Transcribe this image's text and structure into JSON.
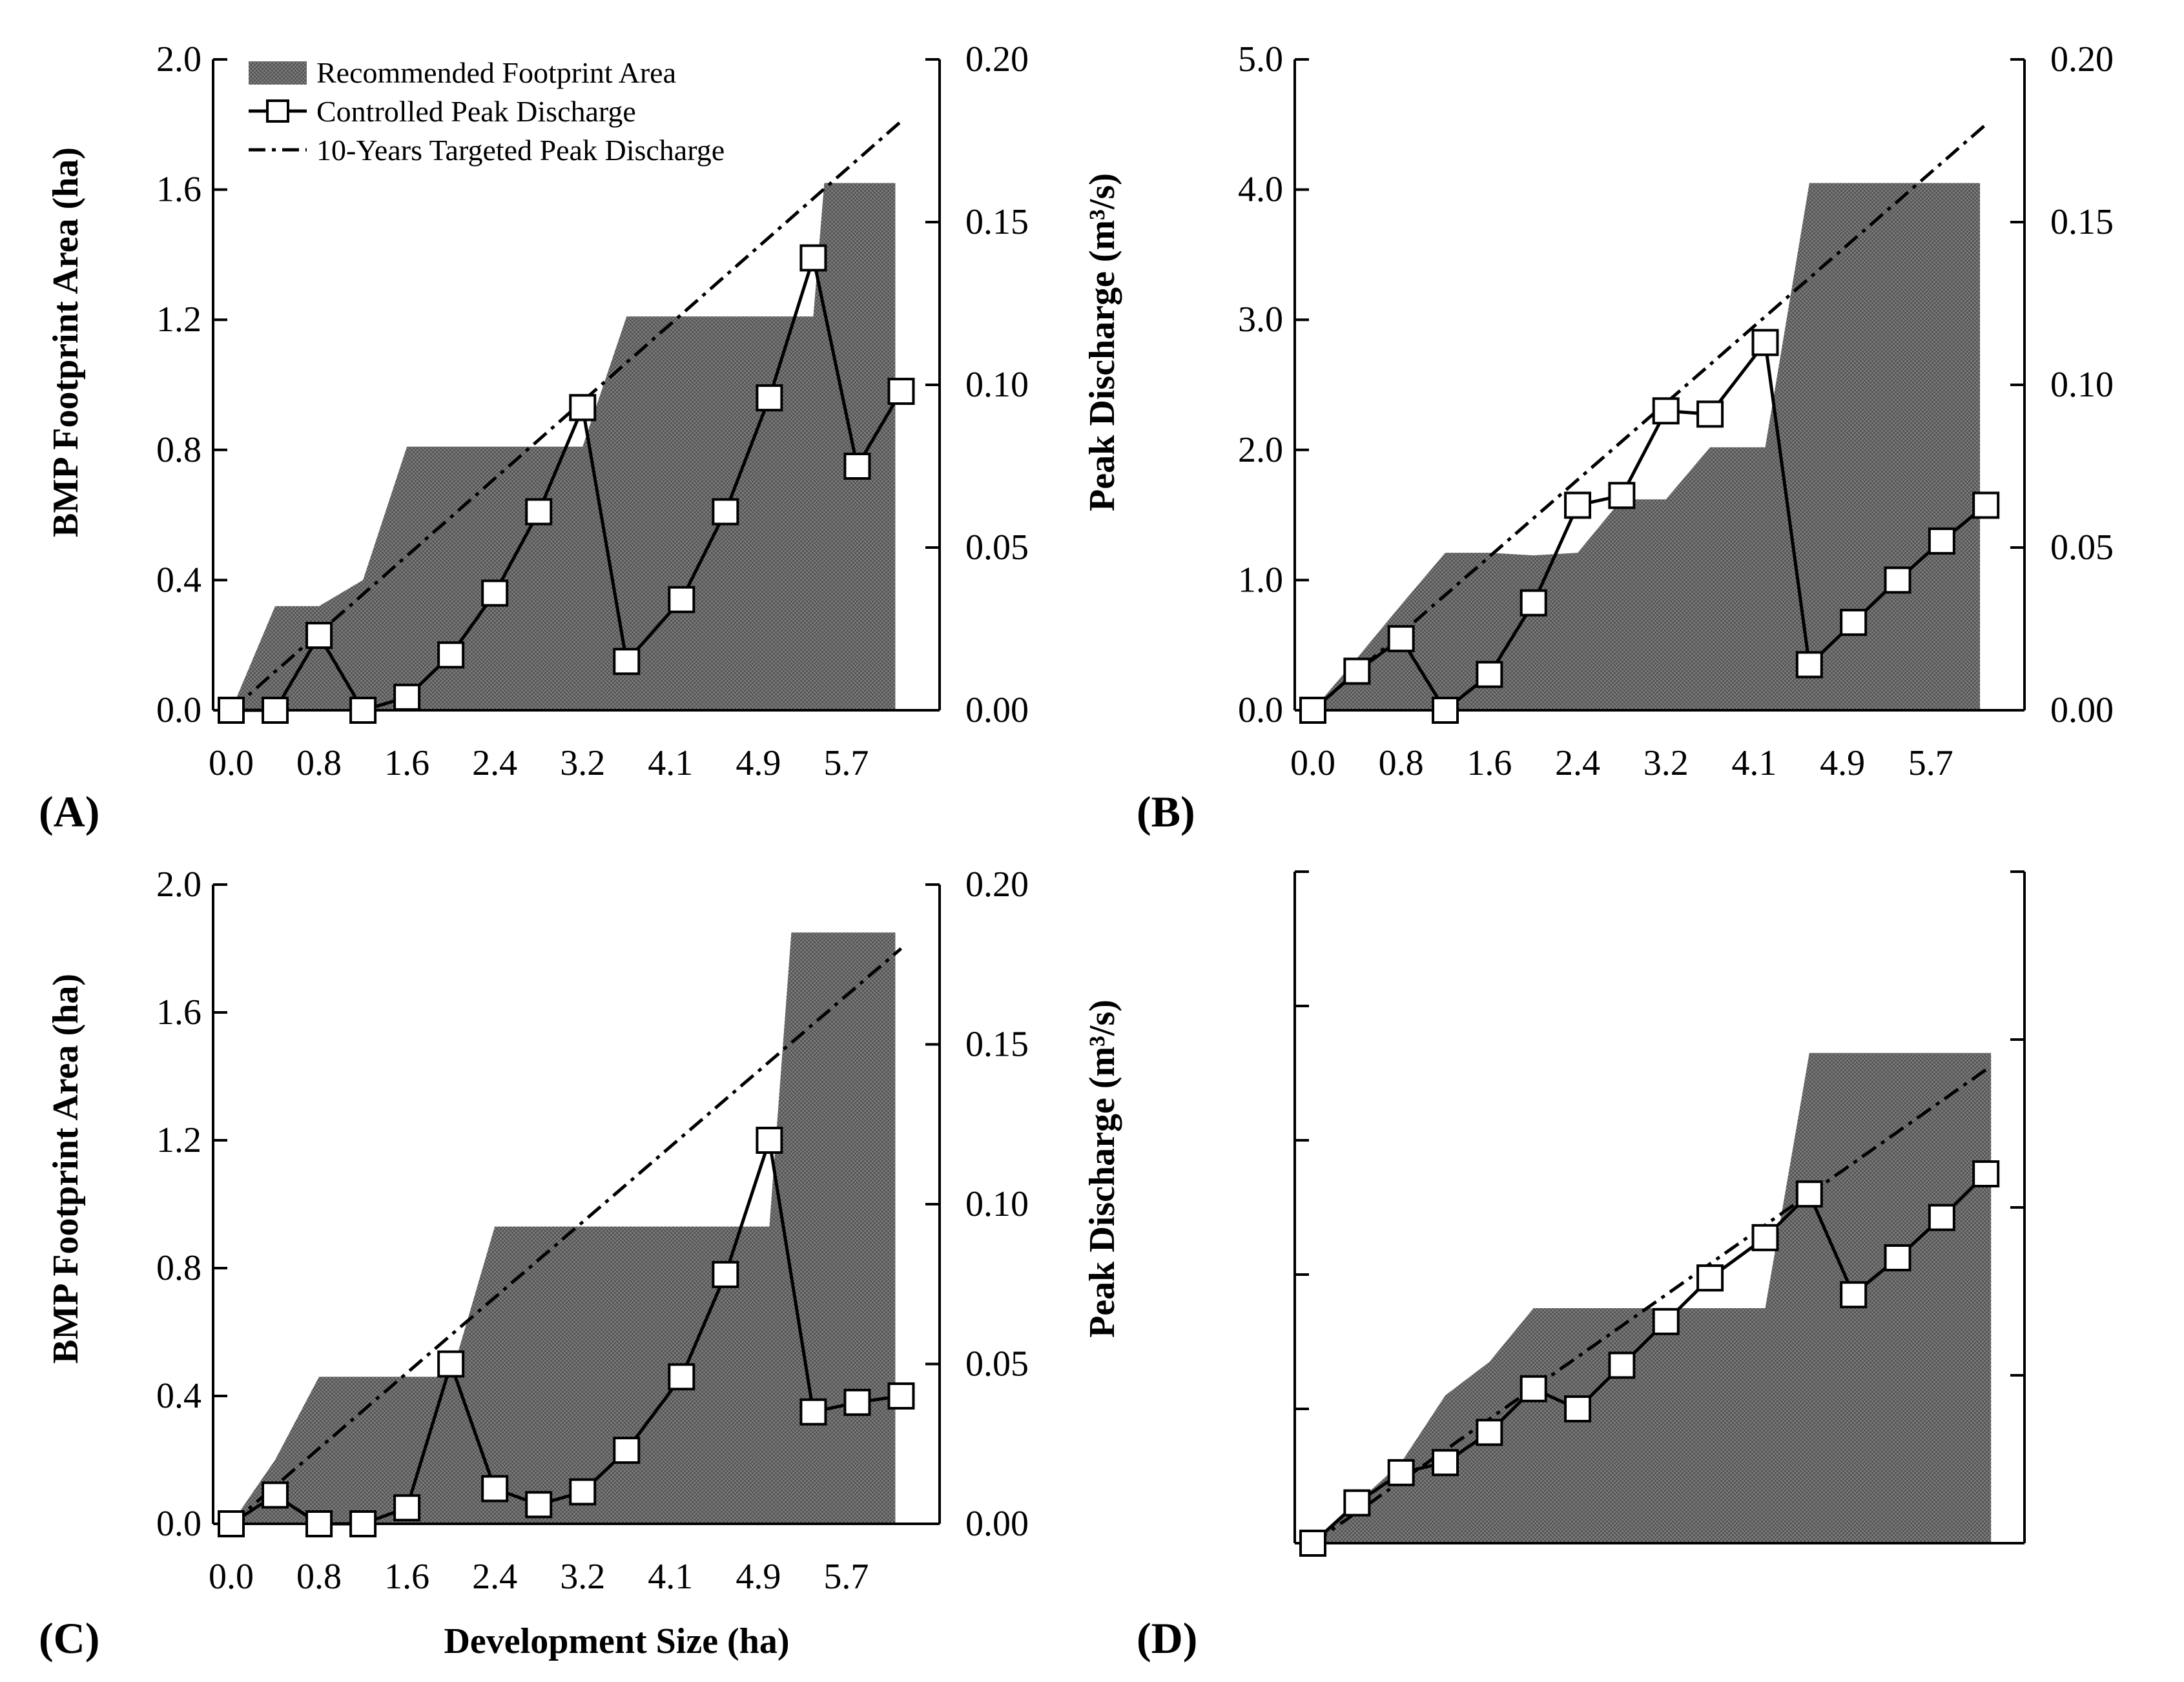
{
  "colors": {
    "area_fill": "#6f6f6f",
    "area_dots": "#4a4a4a",
    "line": "#000000",
    "marker_fill": "#ffffff"
  },
  "legend": {
    "area_label": "Recommended Footprint Area",
    "controlled_label": "Controlled Peak Discharge",
    "target_label": "10-Years Targeted Peak Discharge"
  },
  "axis_titles": {
    "left": "BMP  Footprint Area (ha)",
    "right": "Peak Discharge (m³/s)",
    "x": "Development Size (ha)"
  },
  "x_tick_labels": [
    "0.0",
    "0.8",
    "1.6",
    "2.4",
    "3.2",
    "4.1",
    "4.9",
    "5.7"
  ],
  "chart_data": [
    {
      "panel": "(A)",
      "type": "area+line",
      "x": [
        0.0,
        0.4,
        0.8,
        1.2,
        1.6,
        2.0,
        2.4,
        2.8,
        3.2,
        3.6,
        4.1,
        4.5,
        4.9,
        5.3,
        5.7,
        6.1
      ],
      "left_axis": {
        "title": "BMP  Footprint Area (ha)",
        "ylim": [
          0,
          2.0
        ],
        "ticks": [
          "0.0",
          "0.4",
          "0.8",
          "1.2",
          "1.6",
          "2.0"
        ]
      },
      "right_axis": {
        "title": "Peak Discharge (m³/s)",
        "ylim": [
          0,
          0.2
        ],
        "ticks": [
          "0.00",
          "0.05",
          "0.10",
          "0.15",
          "0.20"
        ]
      },
      "area_x": [
        0.0,
        0.4,
        0.8,
        1.2,
        1.6,
        2.0,
        2.4,
        2.8,
        3.2,
        3.6,
        4.1,
        4.5,
        4.9,
        5.3,
        5.4,
        6.0
      ],
      "recommended_footprint_area": [
        0.0,
        0.32,
        0.32,
        0.4,
        0.81,
        0.81,
        0.81,
        0.81,
        0.81,
        1.21,
        1.21,
        1.21,
        1.21,
        1.21,
        1.62,
        1.62
      ],
      "controlled_peak_discharge": [
        0.0,
        0.0,
        0.023,
        0.0,
        0.004,
        0.017,
        0.036,
        0.061,
        0.093,
        0.015,
        0.034,
        0.061,
        0.096,
        0.139,
        0.075,
        0.098
      ],
      "targeted_peak_discharge_x": [
        0.0,
        6.1
      ],
      "targeted_peak_discharge": [
        0.0,
        0.181
      ]
    },
    {
      "panel": "(B)",
      "type": "area+line",
      "x": [
        0.0,
        0.4,
        0.8,
        1.2,
        1.6,
        2.0,
        2.4,
        2.8,
        3.2,
        3.6,
        4.1,
        4.5,
        4.9,
        5.3,
        5.7,
        6.1
      ],
      "left_axis": {
        "ylim": [
          0,
          5.0
        ],
        "ticks": [
          "0.0",
          "1.0",
          "2.0",
          "3.0",
          "4.0",
          "5.0"
        ]
      },
      "right_axis": {
        "ylim": [
          0,
          0.2
        ],
        "ticks": [
          "0.00",
          "0.05",
          "0.10",
          "0.15",
          "0.20"
        ]
      },
      "area_x": [
        0.0,
        0.4,
        0.8,
        1.2,
        1.6,
        2.0,
        2.4,
        2.8,
        3.2,
        3.6,
        4.1,
        4.5,
        4.9,
        5.3,
        5.7,
        6.0
      ],
      "recommended_footprint_area": [
        0.0,
        0.4,
        0.81,
        1.21,
        1.21,
        1.19,
        1.21,
        1.62,
        1.62,
        2.02,
        2.02,
        4.05,
        4.05,
        4.05,
        4.05,
        4.05
      ],
      "controlled_peak_discharge": [
        0.0,
        0.012,
        0.022,
        0.0,
        0.011,
        0.033,
        0.063,
        0.066,
        0.092,
        0.091,
        0.113,
        0.014,
        0.027,
        0.04,
        0.052,
        0.063
      ],
      "targeted_peak_discharge_x": [
        0.0,
        6.1
      ],
      "targeted_peak_discharge": [
        0.0,
        0.18
      ]
    },
    {
      "panel": "(C)",
      "type": "area+line",
      "x": [
        0.0,
        0.4,
        0.8,
        1.2,
        1.6,
        2.0,
        2.4,
        2.8,
        3.2,
        3.6,
        4.1,
        4.5,
        4.9,
        5.3,
        5.7,
        6.1
      ],
      "left_axis": {
        "title": "BMP  Footprint Area (ha)",
        "ylim": [
          0,
          2.0
        ],
        "ticks": [
          "0.0",
          "0.4",
          "0.8",
          "1.2",
          "1.6",
          "2.0"
        ]
      },
      "right_axis": {
        "title": "Peak Discharge (m³/s)",
        "ylim": [
          0,
          0.2
        ],
        "ticks": [
          "0.00",
          "0.05",
          "0.10",
          "0.15",
          "0.20"
        ]
      },
      "xlabel": "Development Size (ha)",
      "area_x": [
        0.0,
        0.4,
        0.8,
        1.2,
        1.6,
        2.0,
        2.4,
        2.8,
        3.2,
        3.6,
        4.1,
        4.5,
        4.9,
        5.1,
        6.0
      ],
      "recommended_footprint_area": [
        0.0,
        0.2,
        0.46,
        0.46,
        0.46,
        0.46,
        0.93,
        0.93,
        0.93,
        0.93,
        0.93,
        0.93,
        0.93,
        1.85,
        1.85
      ],
      "controlled_peak_discharge": [
        0.0,
        0.009,
        0.0,
        0.0,
        0.005,
        0.05,
        0.011,
        0.006,
        0.01,
        0.023,
        0.046,
        0.078,
        0.12,
        0.035,
        0.038,
        0.04
      ],
      "targeted_peak_discharge_x": [
        0.0,
        6.1
      ],
      "targeted_peak_discharge": [
        0.0,
        0.18
      ]
    },
    {
      "panel": "(D)",
      "type": "area+line",
      "x": [
        0.0,
        0.4,
        0.8,
        1.2,
        1.6,
        2.0,
        2.4,
        2.8,
        3.2,
        3.6,
        4.1,
        4.5,
        4.9,
        5.3,
        5.7,
        6.1
      ],
      "left_axis": {
        "ylim": [
          0,
          1.0
        ],
        "ticks": []
      },
      "right_axis": {
        "ylim": [
          0,
          0.2
        ],
        "ticks": []
      },
      "area_x": [
        0.0,
        0.4,
        0.8,
        1.2,
        1.6,
        2.0,
        2.4,
        2.8,
        3.2,
        3.6,
        4.1,
        4.5,
        4.9,
        5.3,
        5.7,
        6.1
      ],
      "recommended_footprint_area": [
        0.0,
        0.06,
        0.12,
        0.22,
        0.27,
        0.35,
        0.35,
        0.35,
        0.35,
        0.35,
        0.35,
        0.73,
        0.73,
        0.73,
        0.73,
        0.73
      ],
      "controlled_peak_discharge": [
        0.0,
        0.012,
        0.021,
        0.024,
        0.033,
        0.046,
        0.04,
        0.053,
        0.066,
        0.079,
        0.091,
        0.104,
        0.074,
        0.085,
        0.097,
        0.11
      ],
      "targeted_peak_discharge_x": [
        0.0,
        6.1
      ],
      "targeted_peak_discharge": [
        0.0,
        0.141
      ]
    }
  ],
  "panel_labels": [
    "(A)",
    "(B)",
    "(C)",
    "(D)"
  ]
}
